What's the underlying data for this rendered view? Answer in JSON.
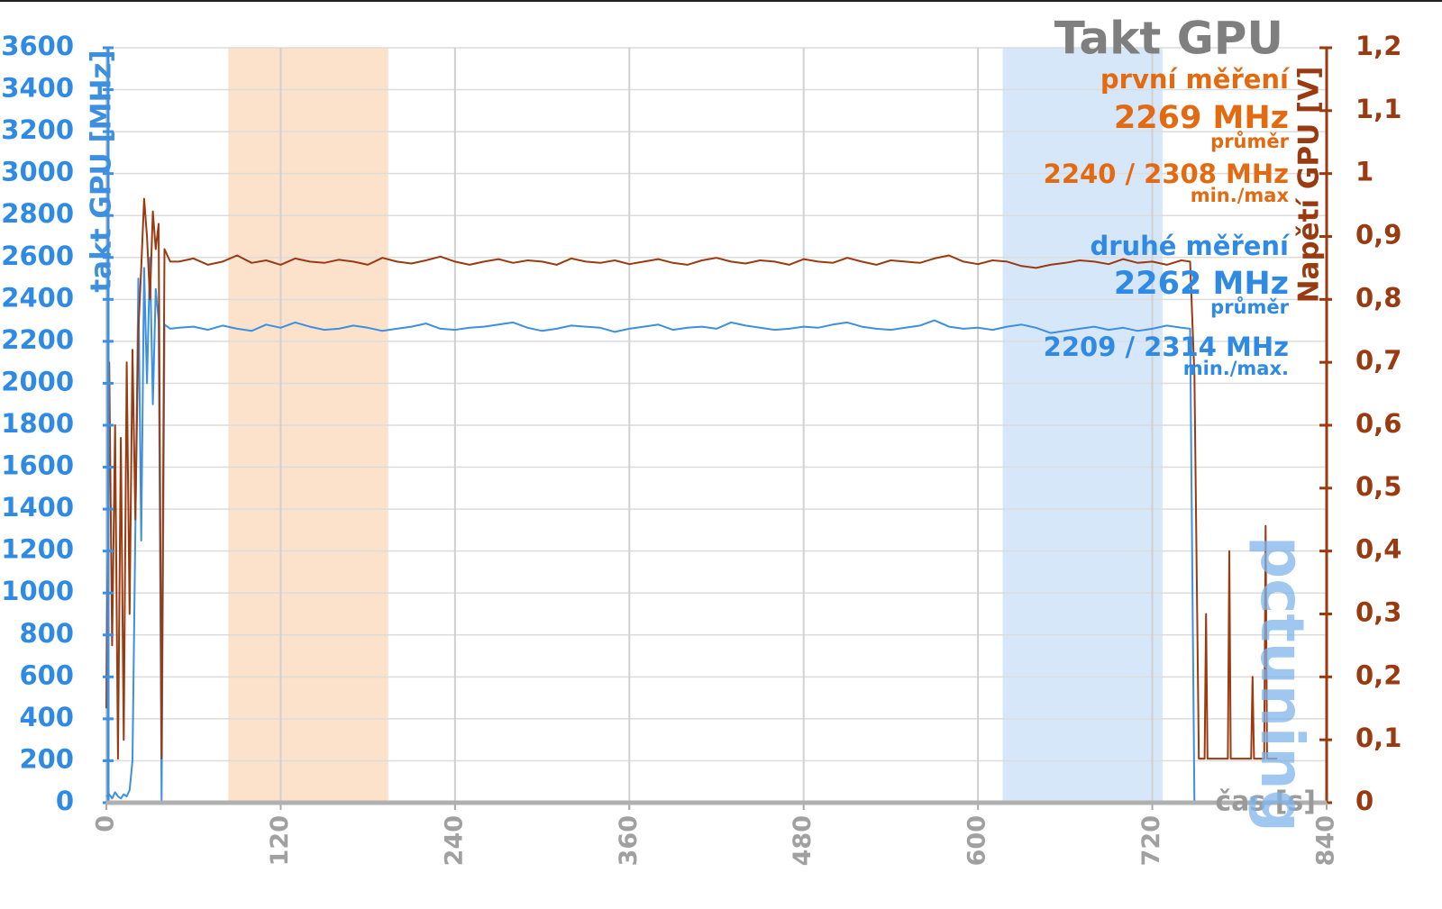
{
  "chart_data": {
    "type": "line",
    "title": "Takt GPU",
    "y_label": "takt GPU [MHz]",
    "y2_label": "Napětí GPU [V]",
    "x_label": "čas [s]",
    "logo": "pctuning",
    "xlim": [
      0,
      840
    ],
    "xticks": [
      0,
      120,
      240,
      360,
      480,
      600,
      720,
      840
    ],
    "ylim": [
      0,
      3600
    ],
    "yticks": [
      0,
      200,
      400,
      600,
      800,
      1000,
      1200,
      1400,
      1600,
      1800,
      2000,
      2200,
      2400,
      2600,
      2800,
      3000,
      3200,
      3400,
      3600
    ],
    "y2lim": [
      0,
      1.2
    ],
    "y2ticks": [
      0,
      {
        "value": 0.1,
        "label": "0,1"
      },
      {
        "value": 0.2,
        "label": "0,2"
      },
      {
        "value": 0.3,
        "label": "0,3"
      },
      {
        "value": 0.4,
        "label": "0,4"
      },
      {
        "value": 0.5,
        "label": "0,5"
      },
      {
        "value": 0.6,
        "label": "0,6"
      },
      {
        "value": 0.7,
        "label": "0,7"
      },
      {
        "value": 0.8,
        "label": "0,8"
      },
      {
        "value": 0.9,
        "label": "0,9"
      },
      1,
      {
        "value": 1.1,
        "label": "1,1"
      },
      {
        "value": 1.2,
        "label": "1,2"
      }
    ],
    "grid": true,
    "bands": [
      {
        "start": 84,
        "end": 194,
        "color": "#fbdcc2"
      },
      {
        "start": 617,
        "end": 727,
        "color": "#cfe3f8"
      }
    ],
    "annotations": [
      {
        "color": "#e36a10",
        "lines": [
          "první měření",
          "2269 MHz",
          "průměr",
          "2240 / 2308 MHz",
          "min./max"
        ]
      },
      {
        "color": "#2f8ae6",
        "lines": [
          "druhé měření",
          "2262 MHz",
          "průměr",
          "2209 / 2314 MHz",
          "min./max."
        ]
      }
    ],
    "x": [
      0,
      2,
      4,
      6,
      8,
      10,
      12,
      14,
      16,
      18,
      20,
      22,
      24,
      26,
      28,
      30,
      32,
      34,
      36,
      38,
      40,
      42,
      44,
      50,
      60,
      70,
      80,
      90,
      100,
      110,
      120,
      130,
      140,
      150,
      160,
      170,
      180,
      190,
      200,
      210,
      220,
      230,
      240,
      250,
      260,
      270,
      280,
      290,
      300,
      310,
      320,
      330,
      340,
      350,
      360,
      370,
      380,
      390,
      400,
      410,
      420,
      430,
      440,
      450,
      460,
      470,
      480,
      490,
      500,
      510,
      520,
      530,
      540,
      550,
      560,
      570,
      580,
      590,
      600,
      610,
      620,
      630,
      640,
      650,
      660,
      670,
      680,
      690,
      700,
      710,
      720,
      730,
      740,
      746,
      749,
      752,
      756,
      757,
      758,
      766,
      772,
      773,
      774,
      784,
      788,
      789,
      790,
      797,
      798,
      799,
      806
    ],
    "series": [
      {
        "name": "takt GPU",
        "color": "#3d8fe0",
        "axis": "y",
        "values": [
          30,
          40,
          20,
          50,
          30,
          20,
          40,
          30,
          60,
          200,
          1300,
          2500,
          1250,
          2550,
          2000,
          2600,
          1900,
          2450,
          2300,
          0,
          2280,
          2270,
          2260,
          2265,
          2270,
          2255,
          2275,
          2260,
          2250,
          2280,
          2265,
          2290,
          2270,
          2255,
          2260,
          2275,
          2265,
          2250,
          2260,
          2270,
          2285,
          2260,
          2255,
          2265,
          2270,
          2280,
          2290,
          2265,
          2250,
          2260,
          2275,
          2270,
          2265,
          2245,
          2260,
          2270,
          2280,
          2255,
          2265,
          2270,
          2260,
          2290,
          2275,
          2265,
          2255,
          2260,
          2270,
          2265,
          2280,
          2290,
          2270,
          2260,
          2255,
          2265,
          2275,
          2300,
          2270,
          2260,
          2265,
          2255,
          2270,
          2280,
          2265,
          2240,
          2250,
          2260,
          2270,
          2255,
          2265,
          2250,
          2260,
          2275,
          2265,
          2260,
          0,
          0,
          0,
          0,
          0,
          0,
          0,
          null,
          null,
          null,
          null,
          null,
          null,
          null,
          null,
          null,
          null
        ]
      },
      {
        "name": "Napětí GPU",
        "color": "#9a3a10",
        "axis": "y2",
        "values": [
          0.15,
          0.7,
          0.25,
          0.6,
          0.07,
          0.58,
          0.1,
          0.7,
          0.3,
          0.72,
          0.45,
          0.75,
          0.85,
          0.96,
          0.9,
          0.8,
          0.94,
          0.88,
          0.92,
          0.07,
          0.88,
          0.87,
          0.86,
          0.86,
          0.865,
          0.855,
          0.86,
          0.87,
          0.858,
          0.862,
          0.855,
          0.865,
          0.86,
          0.858,
          0.863,
          0.86,
          0.855,
          0.866,
          0.86,
          0.857,
          0.862,
          0.868,
          0.86,
          0.855,
          0.86,
          0.864,
          0.858,
          0.862,
          0.86,
          0.855,
          0.865,
          0.86,
          0.858,
          0.862,
          0.856,
          0.86,
          0.864,
          0.858,
          0.855,
          0.862,
          0.866,
          0.86,
          0.857,
          0.862,
          0.86,
          0.855,
          0.864,
          0.86,
          0.858,
          0.866,
          0.86,
          0.855,
          0.862,
          0.86,
          0.858,
          0.865,
          0.87,
          0.86,
          0.856,
          0.862,
          0.86,
          0.853,
          0.85,
          0.855,
          0.858,
          0.862,
          0.86,
          0.856,
          0.864,
          0.858,
          0.86,
          0.855,
          0.862,
          0.86,
          0.68,
          0.07,
          0.07,
          0.3,
          0.07,
          0.07,
          0.07,
          0.4,
          0.07,
          0.07,
          0.07,
          0.2,
          0.07,
          0.07,
          0.44,
          0.07,
          0.07
        ]
      }
    ]
  }
}
